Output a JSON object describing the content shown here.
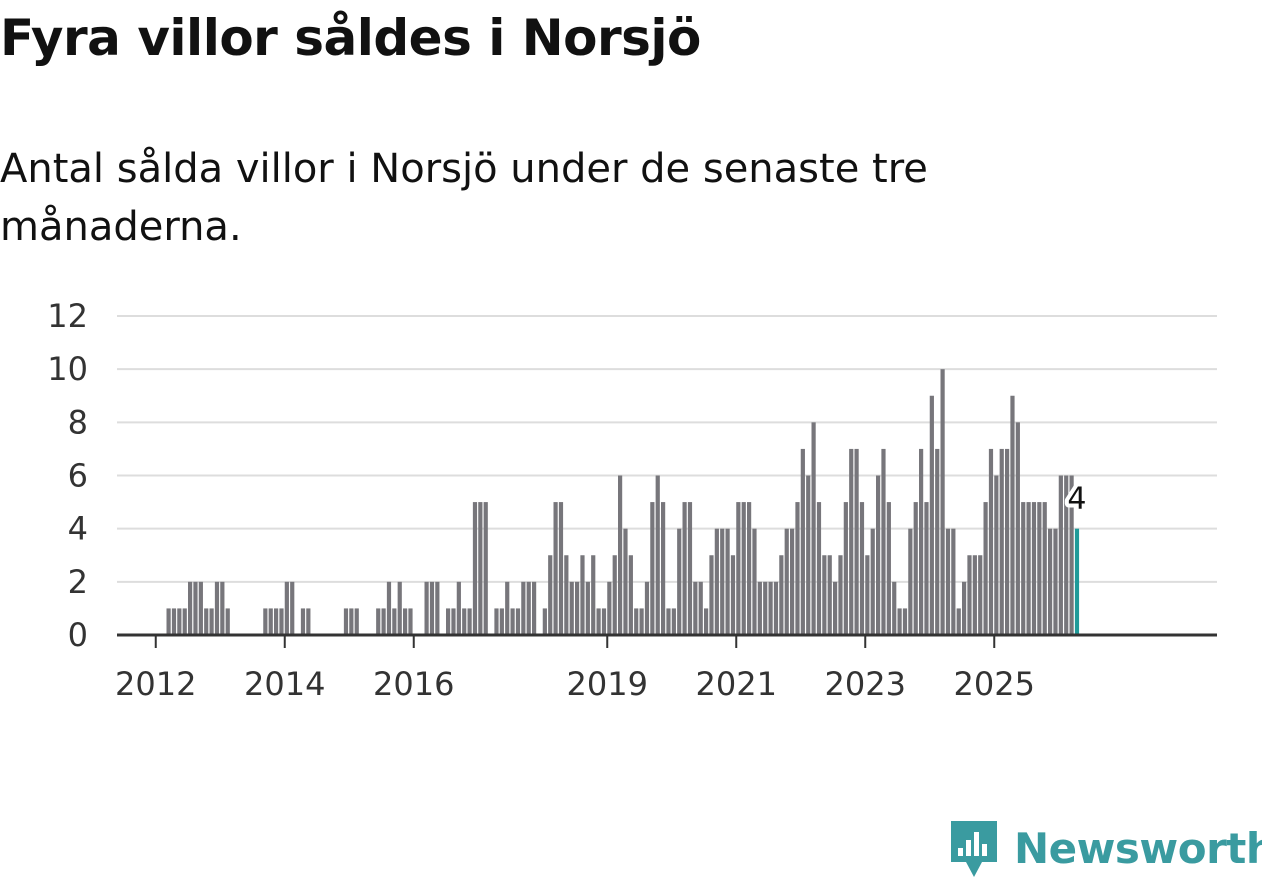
{
  "header": {
    "title": "Fyra villor såldes i Norsjö",
    "subtitle": "Antal sålda villor i Norsjö under de senaste tre månaderna."
  },
  "brand": {
    "name": "Newsworthy",
    "icon": "newsworthy-bar-chart-icon",
    "color": "#3a9ba0"
  },
  "chart_data": {
    "type": "bar",
    "title": "Fyra villor såldes i Norsjö",
    "subtitle": "Antal sålda villor i Norsjö under de senaste tre månaderna.",
    "xlabel": "",
    "ylabel": "",
    "ylim": [
      0,
      12
    ],
    "yticks": [
      "0",
      "2",
      "4",
      "6",
      "8",
      "10",
      "12"
    ],
    "grid": true,
    "first_period": "2011-07",
    "period_step_months": 1,
    "xticks": [
      {
        "label": "2012",
        "index": 6
      },
      {
        "label": "2014",
        "index": 30
      },
      {
        "label": "2016",
        "index": 54
      },
      {
        "label": "2019",
        "index": 90
      },
      {
        "label": "2021",
        "index": 114
      },
      {
        "label": "2023",
        "index": 138
      },
      {
        "label": "2025",
        "index": 162
      }
    ],
    "bar_color": "#77767b",
    "highlight_color": "#1f9a99",
    "highlight_last": true,
    "last_value_label": "4",
    "values": [
      0,
      0,
      0,
      0,
      0,
      0,
      0,
      0,
      1,
      1,
      1,
      1,
      2,
      2,
      2,
      1,
      1,
      2,
      2,
      1,
      0,
      0,
      0,
      0,
      0,
      0,
      1,
      1,
      1,
      1,
      2,
      2,
      0,
      1,
      1,
      0,
      0,
      0,
      0,
      0,
      0,
      1,
      1,
      1,
      0,
      0,
      0,
      1,
      1,
      2,
      1,
      2,
      1,
      1,
      0,
      0,
      2,
      2,
      2,
      0,
      1,
      1,
      2,
      1,
      1,
      5,
      5,
      5,
      0,
      1,
      1,
      2,
      1,
      1,
      2,
      2,
      2,
      0,
      1,
      3,
      5,
      5,
      3,
      2,
      2,
      3,
      2,
      3,
      1,
      1,
      2,
      3,
      6,
      4,
      3,
      1,
      1,
      2,
      5,
      6,
      5,
      1,
      1,
      4,
      5,
      5,
      2,
      2,
      1,
      3,
      4,
      4,
      4,
      3,
      5,
      5,
      5,
      4,
      2,
      2,
      2,
      2,
      3,
      4,
      4,
      5,
      7,
      6,
      8,
      5,
      3,
      3,
      2,
      3,
      5,
      7,
      7,
      5,
      3,
      4,
      6,
      7,
      5,
      2,
      1,
      1,
      4,
      5,
      7,
      5,
      9,
      7,
      10,
      4,
      4,
      1,
      2,
      3,
      3,
      3,
      5,
      7,
      6,
      7,
      7,
      9,
      8,
      5,
      5,
      5,
      5,
      5,
      4,
      4,
      6,
      6,
      6,
      4
    ]
  }
}
